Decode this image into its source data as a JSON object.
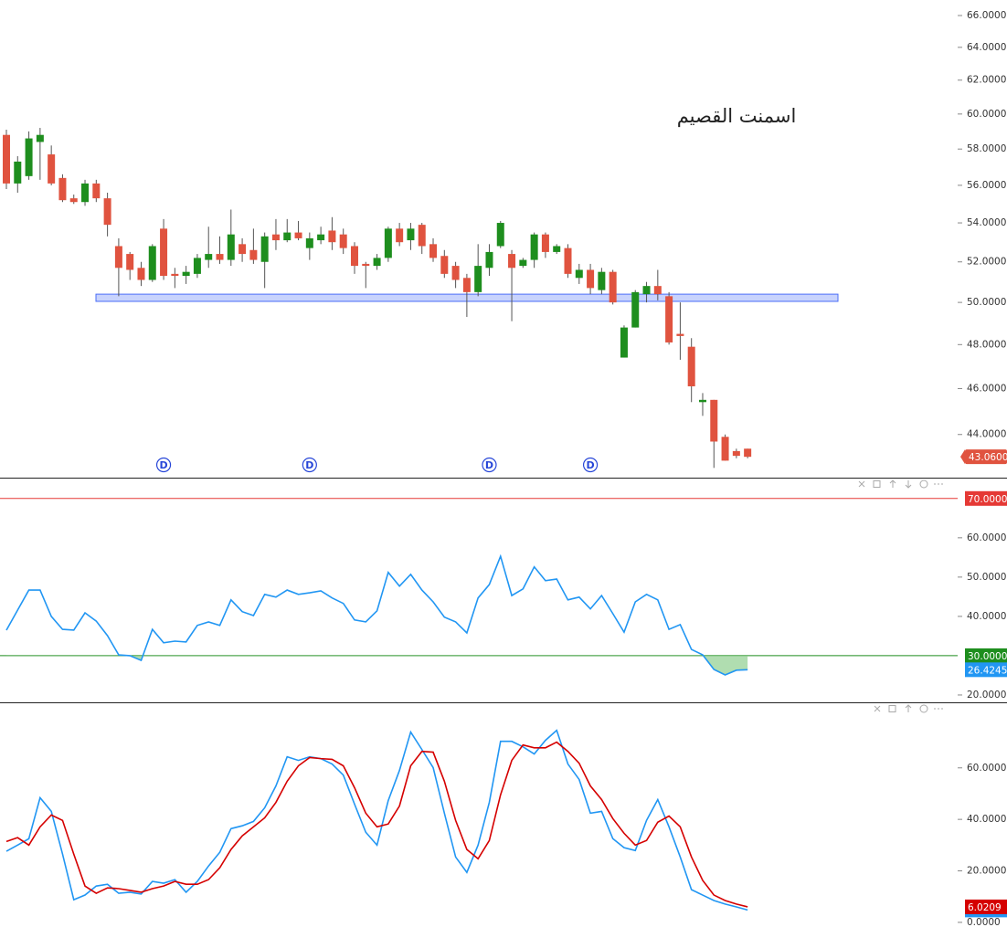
{
  "chart_data": [
    {
      "type": "candlestick",
      "title": "اسمنت القصيم",
      "log_scale": true,
      "up_color": "#1e8e1e",
      "down_color": "#e0533f",
      "wick_color": "#555555",
      "open": [
        58.8,
        56.1,
        56.5,
        58.4,
        57.7,
        56.4,
        55.3,
        55.1,
        56.1,
        55.3,
        52.8,
        52.4,
        51.7,
        51.1,
        53.7,
        51.4,
        51.3,
        51.4,
        52.1,
        52.4,
        52.1,
        52.9,
        52.6,
        52.0,
        53.4,
        53.1,
        53.5,
        52.7,
        53.1,
        53.6,
        53.4,
        52.8,
        51.9,
        51.8,
        52.2,
        53.7,
        53.1,
        53.9,
        52.9,
        52.3,
        51.8,
        51.2,
        50.5,
        51.7,
        52.8,
        52.4,
        51.8,
        52.1,
        53.4,
        52.5,
        52.7,
        51.2,
        51.6,
        50.6,
        51.5,
        47.4,
        48.8,
        50.4,
        50.8,
        50.3,
        48.5,
        47.9,
        45.4,
        45.5,
        43.9,
        43.3,
        43.4
      ],
      "high": [
        59.1,
        57.6,
        59.0,
        59.2,
        58.2,
        56.6,
        55.5,
        56.3,
        56.3,
        55.6,
        53.2,
        52.5,
        52.0,
        52.9,
        54.2,
        51.7,
        51.8,
        52.4,
        53.8,
        53.3,
        54.7,
        53.2,
        53.7,
        53.5,
        54.2,
        54.2,
        54.1,
        53.5,
        53.8,
        54.3,
        53.7,
        53.0,
        52.0,
        52.4,
        53.8,
        54.0,
        54.0,
        54.0,
        53.2,
        52.6,
        52.0,
        51.4,
        52.9,
        52.9,
        54.1,
        52.6,
        52.2,
        53.5,
        53.5,
        52.9,
        52.9,
        51.9,
        51.9,
        51.7,
        51.6,
        48.9,
        50.6,
        51.0,
        51.6,
        50.5,
        50.0,
        48.3,
        45.8,
        45.5,
        44.0,
        43.4,
        43.4
      ],
      "low": [
        55.8,
        55.6,
        56.3,
        56.3,
        56.0,
        55.1,
        55.0,
        54.9,
        55.1,
        53.3,
        50.3,
        51.1,
        50.8,
        51.0,
        51.1,
        50.7,
        50.9,
        51.2,
        51.7,
        51.9,
        51.8,
        52.0,
        51.9,
        50.7,
        52.6,
        53.0,
        53.1,
        52.1,
        52.9,
        52.6,
        52.4,
        51.4,
        50.7,
        51.6,
        52.0,
        52.8,
        52.6,
        52.4,
        52.0,
        51.2,
        50.7,
        49.3,
        50.3,
        51.3,
        52.7,
        49.1,
        51.7,
        51.7,
        52.2,
        52.4,
        51.2,
        50.9,
        50.4,
        50.4,
        49.9,
        47.4,
        48.8,
        50.0,
        50.1,
        48.0,
        47.3,
        45.4,
        44.8,
        42.6,
        42.9,
        43.0,
        43.0
      ],
      "close": [
        56.1,
        57.3,
        58.6,
        58.8,
        56.1,
        55.2,
        55.1,
        56.1,
        55.3,
        53.9,
        51.7,
        51.6,
        51.1,
        52.8,
        51.3,
        51.3,
        51.5,
        52.2,
        52.4,
        52.1,
        53.4,
        52.4,
        52.1,
        53.3,
        53.1,
        53.5,
        53.2,
        53.2,
        53.4,
        53.0,
        52.7,
        51.8,
        51.8,
        52.2,
        53.7,
        53.0,
        53.7,
        52.8,
        52.2,
        51.4,
        51.1,
        50.5,
        51.8,
        52.5,
        54.0,
        51.7,
        52.1,
        53.4,
        52.5,
        52.8,
        51.4,
        51.6,
        50.7,
        51.5,
        50.0,
        48.8,
        50.5,
        50.8,
        50.4,
        48.1,
        48.4,
        46.1,
        45.5,
        43.7,
        42.9,
        43.1,
        43.06
      ],
      "last_label": "43.0600",
      "events": [
        null,
        null,
        null,
        null,
        null,
        null,
        null,
        null,
        null,
        null,
        null,
        null,
        null,
        null,
        "D",
        null,
        null,
        null,
        null,
        null,
        null,
        null,
        null,
        null,
        null,
        null,
        null,
        "D",
        null,
        null,
        null,
        null,
        null,
        null,
        null,
        null,
        null,
        null,
        null,
        null,
        null,
        null,
        null,
        "D",
        null,
        null,
        null,
        null,
        null,
        null,
        null,
        null,
        "D",
        null,
        null,
        null,
        null,
        null,
        null,
        null,
        null,
        null,
        null,
        null,
        null,
        null,
        null
      ],
      "band": [
        50.05,
        50.4
      ],
      "band_color": "#4a6cf7",
      "ylim": [
        42.2,
        67.0
      ],
      "yticks": [
        {
          "value": 44,
          "label": "44.0000"
        },
        {
          "value": 46,
          "label": "46.0000"
        },
        {
          "value": 48,
          "label": "48.0000"
        },
        {
          "value": 50,
          "label": "50.0000"
        },
        {
          "value": 52,
          "label": "52.0000"
        },
        {
          "value": 54,
          "label": "54.0000"
        },
        {
          "value": 56,
          "label": "56.0000"
        },
        {
          "value": 58,
          "label": "58.0000"
        },
        {
          "value": 60,
          "label": "60.0000"
        },
        {
          "value": 62,
          "label": "62.0000"
        },
        {
          "value": 64,
          "label": "64.0000"
        },
        {
          "value": 66,
          "label": "66.0000"
        }
      ]
    },
    {
      "type": "line",
      "series": [
        {
          "color": "#2196f3",
          "values": [
            36.5,
            41.6,
            46.7,
            46.7,
            40.0,
            36.7,
            36.5,
            40.9,
            38.8,
            35.1,
            30.2,
            30.0,
            28.8,
            36.7,
            33.3,
            33.7,
            33.5,
            37.7,
            38.6,
            37.7,
            44.2,
            41.2,
            40.2,
            45.6,
            44.9,
            46.7,
            45.6,
            46.0,
            46.5,
            44.7,
            43.3,
            39.1,
            38.6,
            41.4,
            51.2,
            47.7,
            50.7,
            46.7,
            43.7,
            39.8,
            38.6,
            35.8,
            44.7,
            48.1,
            55.3,
            45.3,
            47.0,
            52.6,
            49.1,
            49.5,
            44.2,
            44.9,
            41.9,
            45.3,
            40.7,
            36.0,
            43.7,
            45.6,
            44.2,
            36.7,
            37.9,
            31.6,
            30.2,
            26.5,
            25.1,
            26.3,
            26.4245
          ]
        }
      ],
      "levels": [
        {
          "value": 70,
          "label": "70.0000",
          "color": "#e53935"
        },
        {
          "value": 30,
          "label": "30.0000",
          "color": "#1e8e1e"
        }
      ],
      "oversold_fill": "#8fcf8f",
      "ylim": [
        17.9,
        75.3
      ],
      "yticks": [
        {
          "value": 20,
          "label": "20.0000"
        },
        {
          "value": 40,
          "label": "40.0000"
        },
        {
          "value": 50,
          "label": "50.0000"
        },
        {
          "value": 60,
          "label": "60.0000"
        }
      ]
    },
    {
      "type": "line",
      "series": [
        {
          "color": "#2196f3",
          "values": [
            27.6,
            30.0,
            32.5,
            48.4,
            43.1,
            26.5,
            8.8,
            10.6,
            14.1,
            14.8,
            11.3,
            11.7,
            11.0,
            15.9,
            15.2,
            16.6,
            11.7,
            15.9,
            21.9,
            27.2,
            36.4,
            37.5,
            39.2,
            44.5,
            53.0,
            64.3,
            62.9,
            64.3,
            63.6,
            61.5,
            57.2,
            45.9,
            35.0,
            30.0,
            47.3,
            59.0,
            73.9,
            67.1,
            60.1,
            42.4,
            25.4,
            19.4,
            30.0,
            46.6,
            70.3,
            70.3,
            68.2,
            65.4,
            70.7,
            74.6,
            61.5,
            55.5,
            42.4,
            43.1,
            32.5,
            29.0,
            27.9,
            39.6,
            47.7,
            37.1,
            25.4,
            12.7,
            10.6,
            8.5,
            7.1,
            6.0,
            4.8054
          ]
        },
        {
          "color": "#d50000",
          "values": [
            31.4,
            32.9,
            30.0,
            37.1,
            41.7,
            39.6,
            26.5,
            14.1,
            11.3,
            13.4,
            13.1,
            12.4,
            11.7,
            13.1,
            14.1,
            15.9,
            14.8,
            14.8,
            16.6,
            21.2,
            28.3,
            33.6,
            37.1,
            40.6,
            46.6,
            54.8,
            60.8,
            64.0,
            63.6,
            63.3,
            60.8,
            52.3,
            42.4,
            37.1,
            38.2,
            45.2,
            60.8,
            66.4,
            66.1,
            54.8,
            39.6,
            28.3,
            24.7,
            31.8,
            49.5,
            62.9,
            68.9,
            67.8,
            67.8,
            70.0,
            66.4,
            61.8,
            53.0,
            47.7,
            40.3,
            34.6,
            30.0,
            31.8,
            38.9,
            41.3,
            37.1,
            25.4,
            16.3,
            10.6,
            8.5,
            7.1,
            6.0209
          ]
        }
      ],
      "ylim": [
        -1.8,
        85.1
      ],
      "yticks": [
        {
          "value": 0,
          "label": "0.0000"
        },
        {
          "value": 20,
          "label": "20.0000"
        },
        {
          "value": 40,
          "label": "40.0000"
        },
        {
          "value": 60,
          "label": "60.0000"
        }
      ]
    }
  ]
}
